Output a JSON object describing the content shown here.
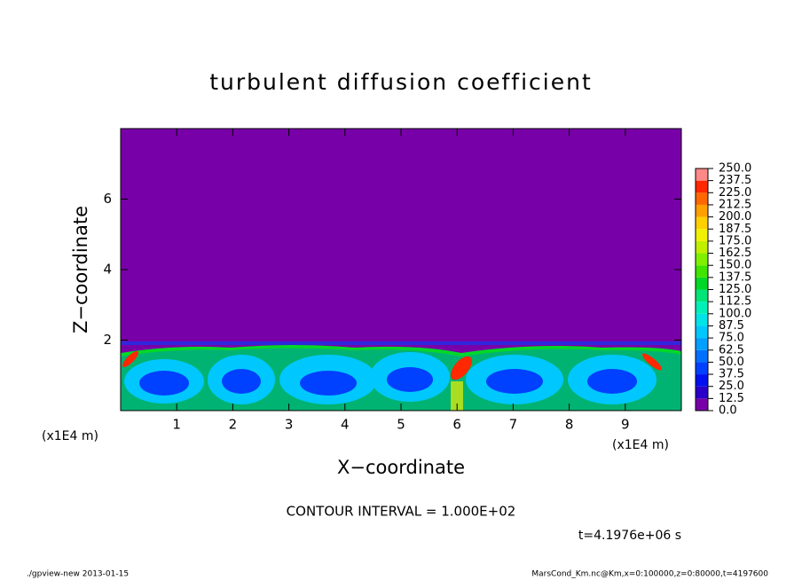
{
  "chart_data": {
    "type": "contour",
    "title": "turbulent diffusion coefficient",
    "xlabel": "X−coordinate",
    "ylabel": "Z−coordinate",
    "xunit": "(x1E4 m)",
    "yunit": "(x1E4 m)",
    "xlim": [
      0,
      10
    ],
    "ylim": [
      0,
      8
    ],
    "xticks": [
      1,
      2,
      3,
      4,
      5,
      6,
      7,
      8,
      9
    ],
    "yticks": [
      2,
      4,
      6
    ],
    "colorbar": {
      "levels": [
        {
          "value": 0,
          "label": "0.0"
        },
        12.5,
        {
          "value": 25,
          "label": "25.0"
        },
        37.5,
        {
          "value": 50,
          "label": "50.0"
        },
        62.5,
        {
          "value": 75,
          "label": "75.0"
        },
        87.5,
        {
          "value": 100,
          "label": "100.0"
        },
        112.5,
        {
          "value": 125,
          "label": "125.0"
        },
        137.5,
        {
          "value": 150,
          "label": "150.0"
        },
        162.5,
        {
          "value": 175,
          "label": "175.0"
        },
        187.5,
        {
          "value": 200,
          "label": "200.0"
        },
        212.5,
        {
          "value": 225,
          "label": "225.0"
        },
        237.5,
        {
          "value": 250,
          "label": "250.0"
        }
      ],
      "colors": [
        "#7800a8",
        "#2800c8",
        "#0010f0",
        "#0040ff",
        "#0070ff",
        "#00a0ff",
        "#00c8ff",
        "#00e4e8",
        "#00f0b8",
        "#00e478",
        "#00d828",
        "#40e400",
        "#80f000",
        "#c0f000",
        "#f0f000",
        "#ffd000",
        "#ffa000",
        "#ff6800",
        "#ff2800",
        "#ff8888"
      ]
    },
    "annotations": [
      "CONTOUR INTERVAL = 1.000E+02",
      "t=4.1976e+06 s"
    ],
    "footer_left": "./gpview-new   2013-01-15",
    "footer_right": "MarsCond_Km.nc@Km,x=0:100000,z=0:80000,t=4197600"
  }
}
